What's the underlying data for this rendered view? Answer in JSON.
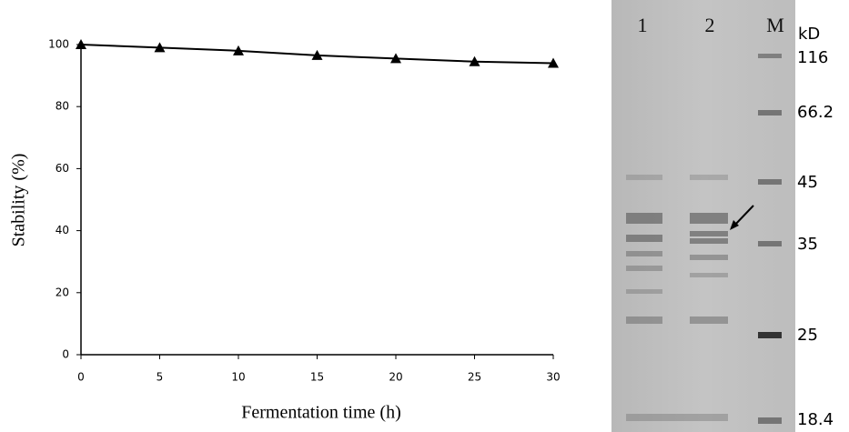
{
  "chart_data": {
    "type": "line",
    "x_label": "Fermentation time (h)",
    "y_label": "Stability (%)",
    "x": [
      0,
      5,
      10,
      15,
      20,
      25,
      30
    ],
    "values": [
      100,
      99,
      98,
      96.5,
      95.5,
      94.5,
      94
    ],
    "color": "#000000",
    "marker": "triangle",
    "xlim": [
      0,
      30
    ],
    "xticks": [
      0,
      5,
      10,
      15,
      20,
      25,
      30
    ],
    "ylim": [
      0,
      100
    ],
    "yticks": [
      0,
      20,
      40,
      60,
      80,
      100
    ],
    "grid": false
  },
  "gel": {
    "lanes": [
      "1",
      "2",
      "M"
    ],
    "unit": "kD",
    "markers": [
      "116",
      "66.2",
      "45",
      "35",
      "25",
      "18.4"
    ]
  }
}
